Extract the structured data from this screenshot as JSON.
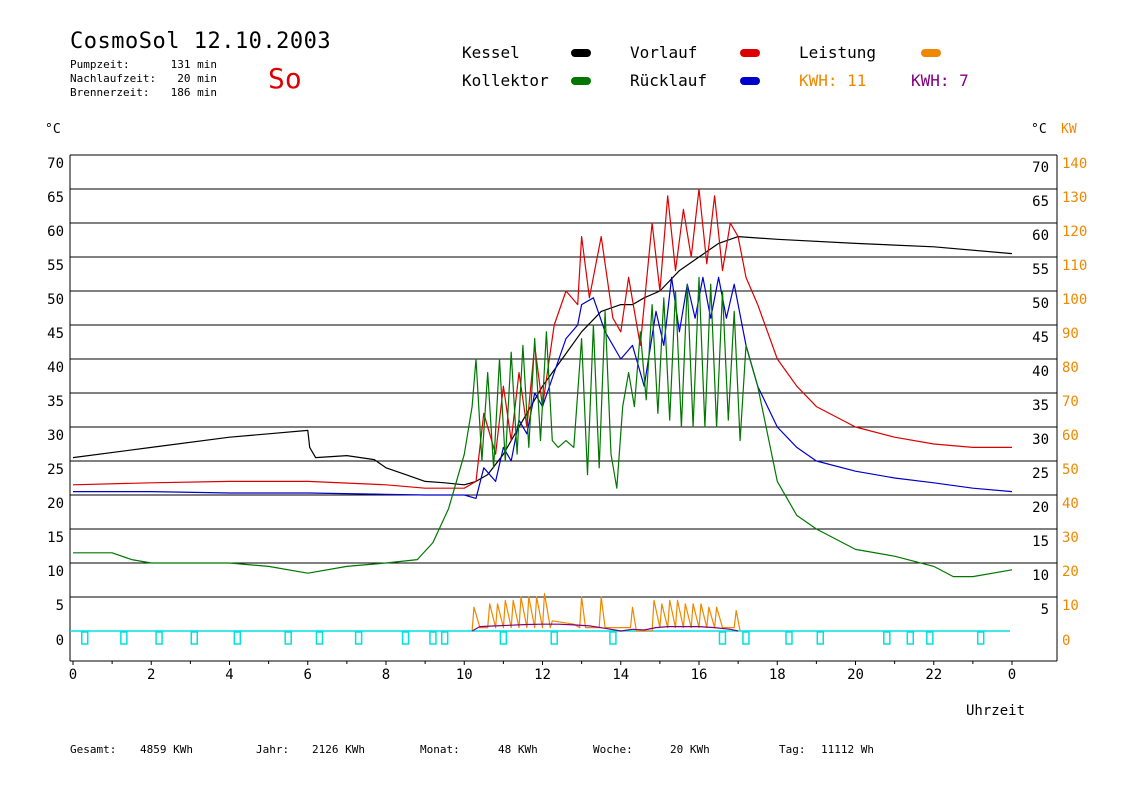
{
  "header": {
    "title": "CosmoSol 12.10.2003",
    "weekday": "So",
    "stats": [
      {
        "label": "Pumpzeit:",
        "value": "131 min"
      },
      {
        "label": "Nachlaufzeit:",
        "value": "20 min"
      },
      {
        "label": "Brennerzeit:",
        "value": "186 min"
      }
    ]
  },
  "legend": {
    "kessel": "Kessel",
    "vorlauf": "Vorlauf",
    "leistung": "Leistung",
    "kollektor": "Kollektor",
    "ruecklauf": "Rücklauf",
    "kwh1": "KWH: 11",
    "kwh2": "KWH: 7"
  },
  "footer": {
    "gesamt_label": "Gesamt:",
    "gesamt_value": "4859 KWh",
    "jahr_label": "Jahr:",
    "jahr_value": "2126 KWh",
    "monat_label": "Monat:",
    "monat_value": "48 KWh",
    "woche_label": "Woche:",
    "woche_value": "20 KWh",
    "tag_label": "Tag:",
    "tag_value": "11112 Wh"
  },
  "chart_data": {
    "type": "line",
    "title": "CosmoSol 12.10.2003",
    "xlabel": "Uhrzeit",
    "ylabel_left": "°C",
    "ylabel_right_1": "°C",
    "ylabel_right_2": "KW",
    "xlim": [
      0,
      24
    ],
    "ylim": [
      0,
      70
    ],
    "ylim_right_kw": [
      0,
      140
    ],
    "x_ticks": [
      "0",
      "2",
      "4",
      "6",
      "8",
      "10",
      "12",
      "14",
      "16",
      "18",
      "20",
      "22",
      "0"
    ],
    "y_ticks_left": [
      0,
      5,
      10,
      15,
      20,
      25,
      30,
      35,
      40,
      45,
      50,
      55,
      60,
      65,
      70
    ],
    "y_ticks_right": [
      5,
      10,
      15,
      20,
      25,
      30,
      35,
      40,
      45,
      50,
      55,
      60,
      65,
      70
    ],
    "y_ticks_kw": [
      0,
      10,
      20,
      30,
      40,
      50,
      60,
      70,
      80,
      90,
      100,
      110,
      120,
      130,
      140
    ],
    "colors": {
      "kessel": "#000000",
      "vorlauf": "#dd0000",
      "ruecklauf": "#0000cc",
      "kollektor": "#007700",
      "leistung": "#ee8800",
      "kwh2": "#800080",
      "pump": "#00e0e0"
    },
    "series": [
      {
        "name": "Kessel",
        "x": [
          0,
          2,
          4,
          5,
          6,
          6.05,
          6.2,
          7,
          7.7,
          8,
          8.5,
          9,
          9.5,
          10,
          10.3,
          10.6,
          11,
          11.5,
          12,
          12.5,
          13,
          13.5,
          14,
          14.3,
          14.6,
          15,
          15.5,
          16,
          16.5,
          17,
          17.5,
          18,
          20,
          22,
          24
        ],
        "y": [
          25.5,
          27,
          28.5,
          29,
          29.5,
          27,
          25.5,
          25.8,
          25.2,
          24,
          23,
          22,
          21.8,
          21.5,
          22,
          23,
          26,
          31,
          36,
          40,
          44,
          47,
          48,
          48,
          49,
          50,
          53,
          55,
          57,
          58,
          57.8,
          57.6,
          57,
          56.5,
          55.5
        ]
      },
      {
        "name": "Vorlauf",
        "x": [
          0,
          2,
          4,
          6,
          8,
          9,
          10,
          10.3,
          10.5,
          10.8,
          11,
          11.2,
          11.4,
          11.6,
          11.8,
          12,
          12.3,
          12.6,
          12.9,
          13,
          13.2,
          13.5,
          13.8,
          14,
          14.2,
          14.5,
          14.8,
          15,
          15.2,
          15.4,
          15.6,
          15.8,
          16,
          16.2,
          16.4,
          16.6,
          16.8,
          17,
          17.2,
          17.5,
          18,
          18.5,
          19,
          20,
          21,
          22,
          23,
          24
        ],
        "y": [
          21.5,
          21.8,
          22,
          22,
          21.5,
          21,
          21,
          22,
          32,
          26,
          36,
          28,
          38,
          30,
          42,
          33,
          45,
          50,
          48,
          58,
          49,
          58,
          46,
          44,
          52,
          42,
          60,
          50,
          64,
          53,
          62,
          55,
          65,
          54,
          64,
          53,
          60,
          58,
          52,
          48,
          40,
          36,
          33,
          30,
          28.5,
          27.5,
          27,
          27
        ]
      },
      {
        "name": "Rücklauf",
        "x": [
          0,
          2,
          4,
          6,
          8,
          9,
          10,
          10.3,
          10.5,
          10.8,
          11,
          11.2,
          11.4,
          11.6,
          11.8,
          12,
          12.3,
          12.6,
          12.9,
          13,
          13.3,
          13.6,
          14,
          14.3,
          14.6,
          14.9,
          15.1,
          15.3,
          15.5,
          15.7,
          15.9,
          16.1,
          16.3,
          16.5,
          16.7,
          16.9,
          17.2,
          17.5,
          18,
          18.5,
          19,
          20,
          21,
          22,
          23,
          24
        ],
        "y": [
          20.5,
          20.5,
          20.3,
          20.3,
          20.1,
          20,
          20,
          19.5,
          24,
          22,
          27,
          25,
          31,
          29,
          35,
          33,
          38,
          43,
          45,
          48,
          49,
          44,
          40,
          42,
          36,
          47,
          42,
          52,
          44,
          51,
          46,
          52,
          46,
          52,
          46,
          51,
          42,
          36,
          30,
          27,
          25,
          23.5,
          22.5,
          21.8,
          21,
          20.5
        ]
      },
      {
        "name": "Kollektor",
        "x": [
          0,
          1,
          1.5,
          2,
          3,
          4,
          5,
          6,
          7,
          8,
          8.8,
          9.2,
          9.6,
          10,
          10.2,
          10.3,
          10.45,
          10.6,
          10.75,
          10.9,
          11.05,
          11.2,
          11.35,
          11.5,
          11.65,
          11.8,
          11.95,
          12.1,
          12.25,
          12.4,
          12.6,
          12.8,
          13,
          13.15,
          13.3,
          13.45,
          13.6,
          13.75,
          13.9,
          14.05,
          14.2,
          14.35,
          14.5,
          14.65,
          14.8,
          14.95,
          15.1,
          15.25,
          15.4,
          15.55,
          15.7,
          15.85,
          16,
          16.15,
          16.3,
          16.45,
          16.6,
          16.75,
          16.9,
          17.05,
          17.2,
          17.5,
          18,
          18.5,
          19,
          20,
          21,
          22,
          22.5,
          23,
          24
        ],
        "y": [
          11.5,
          11.5,
          10.5,
          10,
          10,
          10,
          9.5,
          8.5,
          9.5,
          10,
          10.5,
          13,
          18,
          26,
          33,
          40,
          25,
          38,
          24,
          40,
          25,
          41,
          26,
          42,
          27,
          43,
          28,
          44,
          28,
          27,
          28,
          27,
          43,
          23,
          45,
          24,
          47,
          26,
          21,
          33,
          38,
          33,
          44,
          34,
          48,
          32,
          49,
          31,
          50,
          30,
          51,
          30,
          52,
          30,
          51,
          30,
          50,
          31,
          47,
          28,
          42,
          36,
          22,
          17,
          15,
          12,
          11,
          9.5,
          8,
          8,
          9
        ]
      },
      {
        "name": "Leistung",
        "x": [
          10.2,
          10.25,
          10.4,
          10.6,
          10.65,
          10.8,
          10.85,
          11,
          11.05,
          11.2,
          11.25,
          11.4,
          11.45,
          11.6,
          11.65,
          11.8,
          11.85,
          12,
          12.05,
          12.2,
          12.25,
          12.8,
          12.95,
          13,
          13.1,
          13.45,
          13.5,
          13.6,
          14.25,
          14.3,
          14.4,
          14.8,
          14.85,
          15,
          15.05,
          15.2,
          15.25,
          15.4,
          15.45,
          15.6,
          15.65,
          15.8,
          15.85,
          16,
          16.05,
          16.2,
          16.25,
          16.4,
          16.45,
          16.6,
          16.9,
          16.95,
          17.05
        ],
        "y": [
          0,
          7,
          1,
          1,
          8,
          1,
          8,
          1,
          9,
          1,
          9,
          1,
          10,
          1,
          10,
          1,
          10,
          1,
          11,
          1,
          3,
          2,
          1,
          10,
          1,
          1,
          10,
          1,
          1,
          7,
          0,
          0,
          9,
          1,
          8,
          1,
          9,
          1,
          9,
          1,
          8,
          1,
          8,
          1,
          8,
          1,
          7,
          1,
          7,
          1,
          1,
          6,
          0
        ]
      },
      {
        "name": "KWH: 7",
        "x": [
          10.2,
          10.4,
          10.8,
          11.2,
          11.6,
          12,
          12.4,
          12.8,
          13.2,
          13.6,
          14,
          14.3,
          14.6,
          14.9,
          15.2,
          15.6,
          16,
          16.4,
          16.8,
          17
        ],
        "y": [
          0,
          1.3,
          1.5,
          1.7,
          1.9,
          2,
          2,
          1.8,
          1.5,
          0.8,
          0,
          0.5,
          0.3,
          1,
          1.3,
          1.3,
          1.3,
          1,
          0.5,
          0
        ]
      }
    ],
    "pump_markers": [
      0.3,
      1.3,
      2.2,
      3.1,
      4.2,
      5.5,
      6.3,
      7.3,
      8.5,
      9.2,
      9.5,
      11,
      12.3,
      13.8,
      16.6,
      17.2,
      18.3,
      19.1,
      20.8,
      21.4,
      21.9,
      23.2
    ],
    "grid": true,
    "legend_position": "top"
  }
}
